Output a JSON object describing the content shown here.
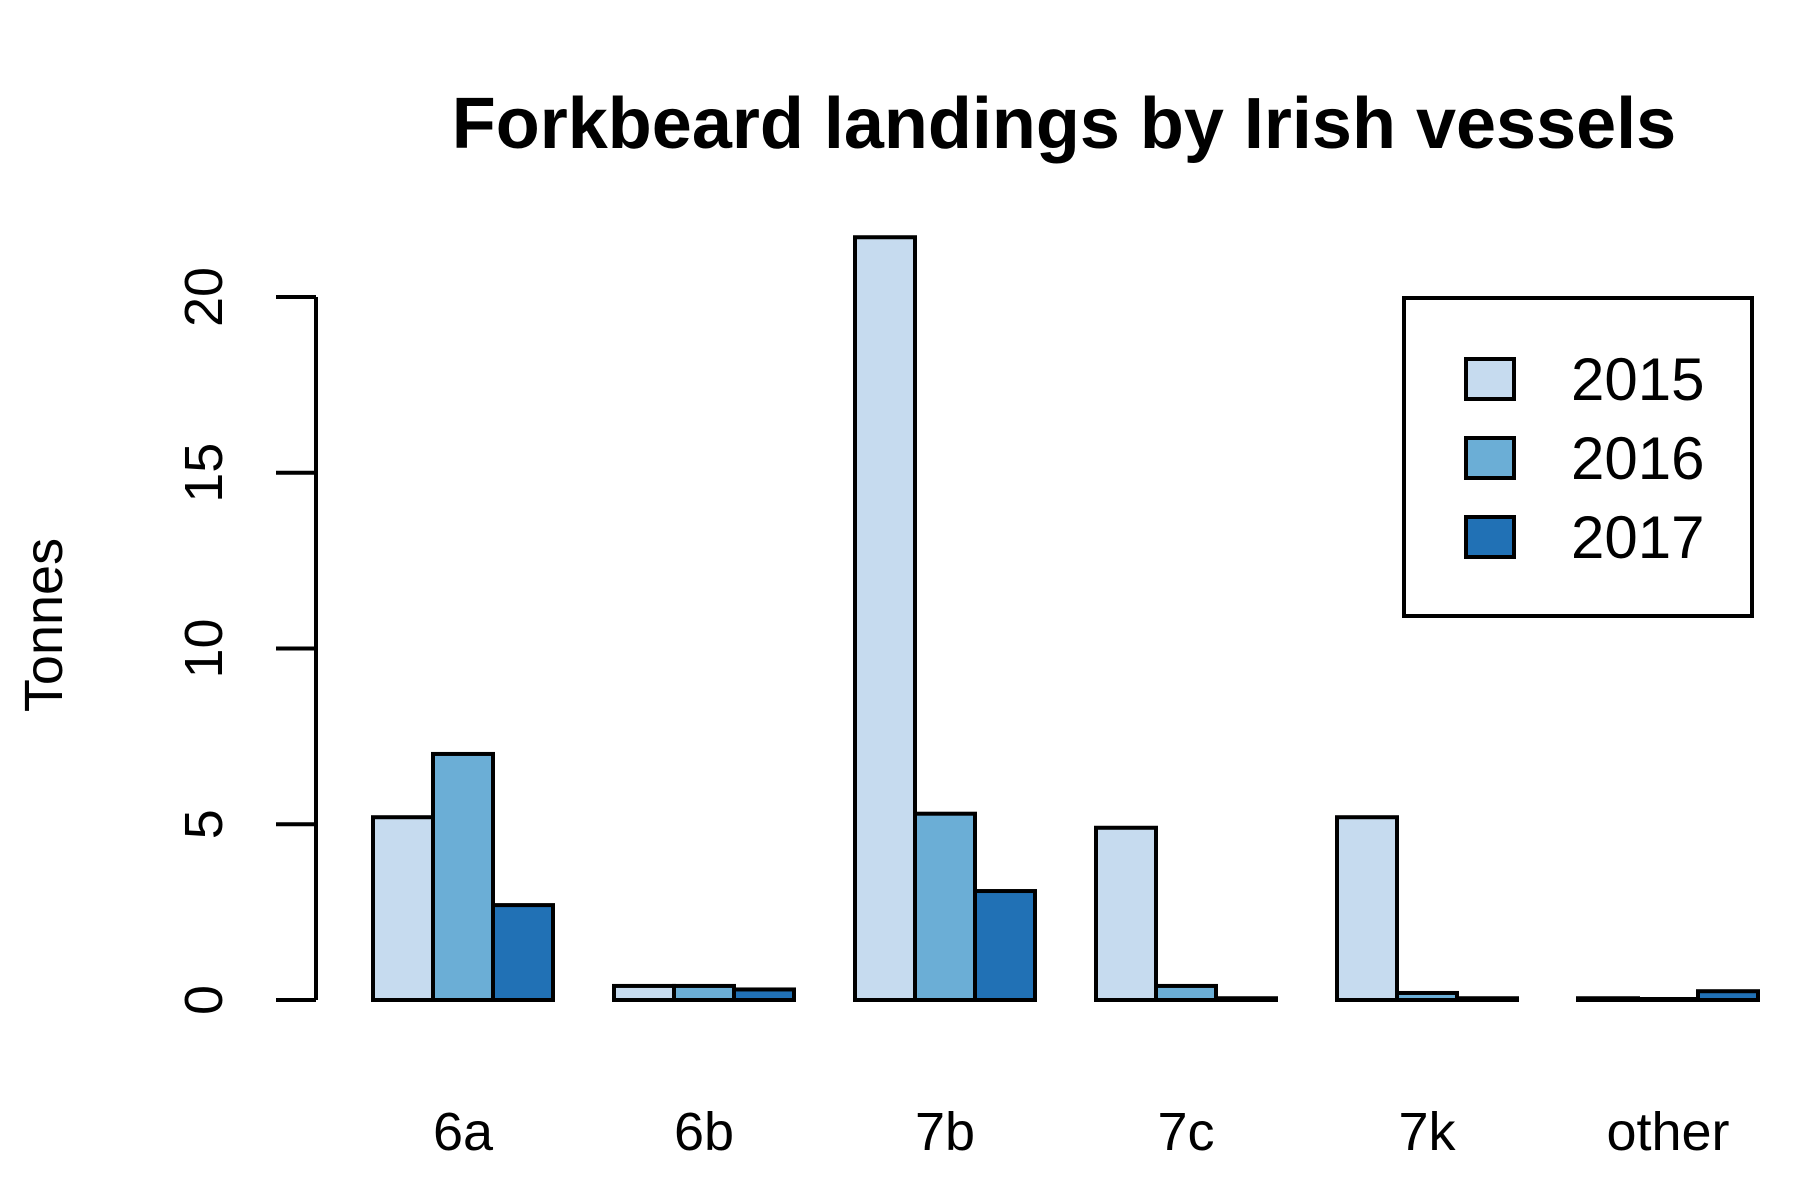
{
  "chart_data": {
    "type": "bar",
    "title": "Forkbeard landings by Irish vessels",
    "xlabel": "",
    "ylabel": "Tonnes",
    "categories": [
      "6a",
      "6b",
      "7b",
      "7c",
      "7k",
      "other"
    ],
    "series": [
      {
        "name": "2015",
        "color": "#c6dbef",
        "values": [
          5.2,
          0.4,
          21.7,
          4.9,
          5.2,
          0.05
        ]
      },
      {
        "name": "2016",
        "color": "#6baed6",
        "values": [
          7.0,
          0.4,
          5.3,
          0.4,
          0.2,
          0.02
        ]
      },
      {
        "name": "2017",
        "color": "#2171b5",
        "values": [
          2.7,
          0.3,
          3.1,
          0.05,
          0.05,
          0.25
        ]
      }
    ],
    "ylim": [
      0,
      21.7
    ],
    "yticks": [
      "0",
      "5",
      "10",
      "15",
      "20"
    ],
    "legend": {
      "position": "top-right",
      "entries": [
        "2015",
        "2016",
        "2017"
      ]
    },
    "grid": false
  }
}
